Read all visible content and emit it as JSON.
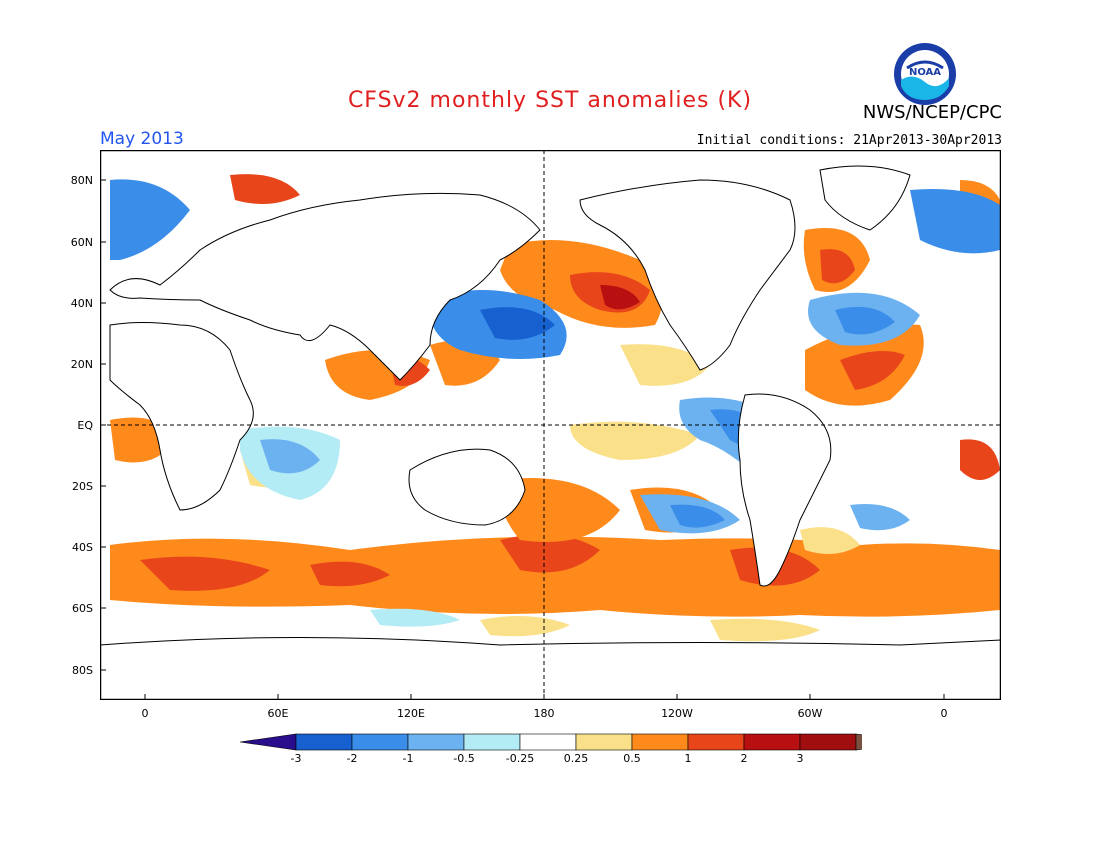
{
  "header": {
    "title": "CFSv2 monthly SST anomalies (K)",
    "title_color": "#e02020",
    "credit": "NWS/NCEP/CPC",
    "period": "May 2013",
    "period_color": "#2255ee",
    "initial_conditions": "Initial conditions: 21Apr2013-30Apr2013",
    "logo_text": "NOAA"
  },
  "map": {
    "lat_labels": [
      "80N",
      "60N",
      "40N",
      "20N",
      "EQ",
      "20S",
      "40S",
      "60S",
      "80S"
    ],
    "lon_labels": [
      "0",
      "60E",
      "120E",
      "180",
      "120W",
      "60W",
      "0"
    ]
  },
  "colorbar": {
    "labels": [
      "-3",
      "-2",
      "-1",
      "-0.5",
      "-0.25",
      "0.25",
      "0.5",
      "1",
      "2",
      "3"
    ],
    "colors": [
      "#2a0d8c",
      "#1660d0",
      "#3a8de8",
      "#6cb2f0",
      "#b4ecf5",
      "#ffffff",
      "#fbe08a",
      "#ff8a1c",
      "#e8461a",
      "#b81010",
      "#a00e10",
      "#7a5040"
    ]
  }
}
